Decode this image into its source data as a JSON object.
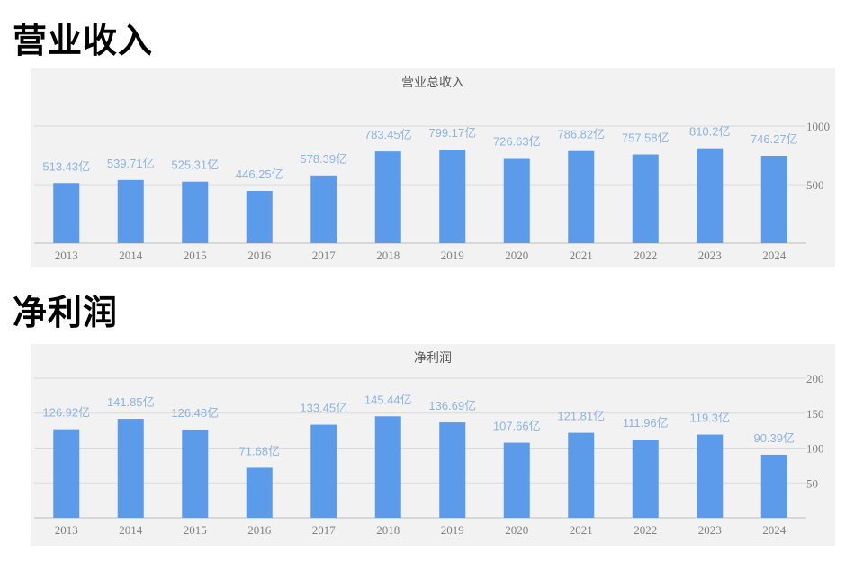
{
  "headings": {
    "revenue": "营业收入",
    "profit": "净利润"
  },
  "colors": {
    "bar": "#5b9bea",
    "label": "#8db3e2",
    "panel_bg": "#f2f2f2",
    "grid": "#d9d9d9"
  },
  "chart_data": [
    {
      "type": "bar",
      "title": "营业总收入",
      "categories": [
        "2013",
        "2014",
        "2015",
        "2016",
        "2017",
        "2018",
        "2019",
        "2020",
        "2021",
        "2022",
        "2023",
        "2024"
      ],
      "values": [
        513.43,
        539.71,
        525.31,
        446.25,
        578.39,
        783.45,
        799.17,
        726.63,
        786.82,
        757.58,
        810.2,
        746.27
      ],
      "data_labels": [
        "513.43亿",
        "539.71亿",
        "525.31亿",
        "446.25亿",
        "578.39亿",
        "783.45亿",
        "799.17亿",
        "726.63亿",
        "786.82亿",
        "757.58亿",
        "810.2亿",
        "746.27亿"
      ],
      "ylim": [
        0,
        1000
      ],
      "y_ticks": [
        500,
        1000
      ],
      "y_axis_side": "right",
      "grid": true
    },
    {
      "type": "bar",
      "title": "净利润",
      "categories": [
        "2013",
        "2014",
        "2015",
        "2016",
        "2017",
        "2018",
        "2019",
        "2020",
        "2021",
        "2022",
        "2023",
        "2024"
      ],
      "values": [
        126.92,
        141.85,
        126.48,
        71.68,
        133.45,
        145.44,
        136.69,
        107.66,
        121.81,
        111.96,
        119.3,
        90.39
      ],
      "data_labels": [
        "126.92亿",
        "141.85亿",
        "126.48亿",
        "71.68亿",
        "133.45亿",
        "145.44亿",
        "136.69亿",
        "107.66亿",
        "121.81亿",
        "111.96亿",
        "119.3亿",
        "90.39亿"
      ],
      "ylim": [
        0,
        200
      ],
      "y_ticks": [
        50,
        100,
        150,
        200
      ],
      "y_axis_side": "right",
      "grid": true
    }
  ]
}
